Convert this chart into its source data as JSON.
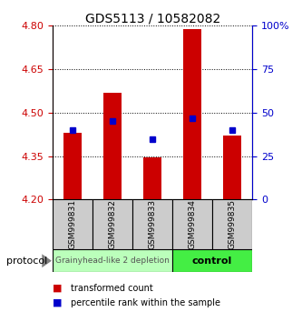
{
  "title": "GDS5113 / 10582082",
  "samples": [
    "GSM999831",
    "GSM999832",
    "GSM999833",
    "GSM999834",
    "GSM999835"
  ],
  "bar_values": [
    4.43,
    4.57,
    4.345,
    4.79,
    4.42
  ],
  "bar_bottom": 4.2,
  "blue_values": [
    40,
    45,
    35,
    47,
    40
  ],
  "ylim": [
    4.2,
    4.8
  ],
  "y2lim": [
    0,
    100
  ],
  "yticks": [
    4.2,
    4.35,
    4.5,
    4.65,
    4.8
  ],
  "y2ticks": [
    0,
    25,
    50,
    75,
    100
  ],
  "bar_color": "#cc0000",
  "blue_color": "#0000cc",
  "group1_label": "Grainyhead-like 2 depletion",
  "group2_label": "control",
  "group1_color": "#bbffbb",
  "group2_color": "#44ee44",
  "group1_indices": [
    0,
    1,
    2
  ],
  "group2_indices": [
    3,
    4
  ],
  "protocol_label": "protocol",
  "legend_red": "transformed count",
  "legend_blue": "percentile rank within the sample",
  "tick_label_color_left": "#cc0000",
  "tick_label_color_right": "#0000cc",
  "bar_width": 0.45,
  "blue_marker_size": 4
}
